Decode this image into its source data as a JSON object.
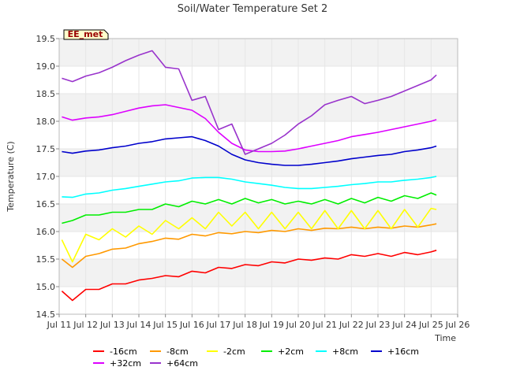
{
  "chart_data": {
    "type": "line",
    "title": "Soil/Water Temperature Set 2",
    "xlabel": "Time",
    "ylabel": "Temperature (C)",
    "station_label": "EE_met",
    "xlim": [
      11,
      26
    ],
    "ylim": [
      14.5,
      19.5
    ],
    "x_ticks": [
      11,
      12,
      13,
      14,
      15,
      16,
      17,
      18,
      19,
      20,
      21,
      22,
      23,
      24,
      25,
      26
    ],
    "x_tick_labels": [
      "Jul 11",
      "Jul 12",
      "Jul 13",
      "Jul 14",
      "Jul 15",
      "Jul 16",
      "Jul 17",
      "Jul 18",
      "Jul 19",
      "Jul 20",
      "Jul 21",
      "Jul 22",
      "Jul 23",
      "Jul 24",
      "Jul 25",
      "Jul 26"
    ],
    "y_ticks": [
      14.5,
      15.0,
      15.5,
      16.0,
      16.5,
      17.0,
      17.5,
      18.0,
      18.5,
      19.0,
      19.5
    ],
    "y_tick_labels": [
      "14.5",
      "15.0",
      "15.5",
      "16.0",
      "16.5",
      "17.0",
      "17.5",
      "18.0",
      "18.5",
      "19.0",
      "19.5"
    ],
    "grid": true,
    "legend_position": "bottom",
    "x": [
      11.1,
      11.5,
      12.0,
      12.5,
      13.0,
      13.5,
      14.0,
      14.5,
      15.0,
      15.5,
      16.0,
      16.5,
      17.0,
      17.5,
      18.0,
      18.5,
      19.0,
      19.5,
      20.0,
      20.5,
      21.0,
      21.5,
      22.0,
      22.5,
      23.0,
      23.5,
      24.0,
      24.5,
      25.0,
      25.2
    ],
    "series": [
      {
        "name": "-16cm",
        "color": "#ff0000",
        "values": [
          14.92,
          14.75,
          14.95,
          14.95,
          15.05,
          15.05,
          15.12,
          15.15,
          15.2,
          15.18,
          15.28,
          15.25,
          15.35,
          15.33,
          15.4,
          15.38,
          15.45,
          15.43,
          15.5,
          15.48,
          15.52,
          15.5,
          15.58,
          15.55,
          15.6,
          15.55,
          15.62,
          15.58,
          15.63,
          15.66
        ]
      },
      {
        "name": "-8cm",
        "color": "#ff9900",
        "values": [
          15.5,
          15.35,
          15.55,
          15.6,
          15.68,
          15.7,
          15.78,
          15.82,
          15.88,
          15.86,
          15.95,
          15.92,
          15.98,
          15.96,
          16.0,
          15.98,
          16.02,
          16.0,
          16.05,
          16.02,
          16.06,
          16.05,
          16.08,
          16.05,
          16.08,
          16.06,
          16.1,
          16.08,
          16.12,
          16.14
        ]
      },
      {
        "name": "-2cm",
        "color": "#ffff00",
        "values": [
          15.85,
          15.45,
          15.95,
          15.85,
          16.05,
          15.9,
          16.1,
          15.95,
          16.2,
          16.05,
          16.25,
          16.05,
          16.35,
          16.1,
          16.35,
          16.05,
          16.35,
          16.05,
          16.35,
          16.05,
          16.38,
          16.05,
          16.38,
          16.05,
          16.38,
          16.05,
          16.4,
          16.08,
          16.42,
          16.4
        ]
      },
      {
        "name": "+2cm",
        "color": "#00ee00",
        "values": [
          16.15,
          16.2,
          16.3,
          16.3,
          16.35,
          16.35,
          16.4,
          16.4,
          16.5,
          16.45,
          16.55,
          16.5,
          16.58,
          16.5,
          16.6,
          16.52,
          16.58,
          16.5,
          16.55,
          16.5,
          16.58,
          16.5,
          16.6,
          16.52,
          16.62,
          16.55,
          16.65,
          16.6,
          16.7,
          16.66
        ]
      },
      {
        "name": "+8cm",
        "color": "#00ffff",
        "values": [
          16.63,
          16.62,
          16.68,
          16.7,
          16.75,
          16.78,
          16.82,
          16.86,
          16.9,
          16.92,
          16.97,
          16.98,
          16.98,
          16.95,
          16.9,
          16.87,
          16.84,
          16.8,
          16.78,
          16.78,
          16.8,
          16.82,
          16.85,
          16.87,
          16.9,
          16.9,
          16.93,
          16.95,
          16.98,
          17.0
        ]
      },
      {
        "name": "+16cm",
        "color": "#0000cc",
        "values": [
          17.45,
          17.42,
          17.46,
          17.48,
          17.52,
          17.55,
          17.6,
          17.63,
          17.68,
          17.7,
          17.72,
          17.65,
          17.55,
          17.4,
          17.3,
          17.25,
          17.22,
          17.2,
          17.2,
          17.22,
          17.25,
          17.28,
          17.32,
          17.35,
          17.38,
          17.4,
          17.45,
          17.48,
          17.52,
          17.55
        ]
      },
      {
        "name": "+32cm",
        "color": "#dd00ff",
        "values": [
          18.08,
          18.02,
          18.06,
          18.08,
          18.12,
          18.18,
          18.24,
          18.28,
          18.3,
          18.25,
          18.2,
          18.05,
          17.8,
          17.6,
          17.48,
          17.45,
          17.45,
          17.46,
          17.5,
          17.55,
          17.6,
          17.65,
          17.72,
          17.76,
          17.8,
          17.85,
          17.9,
          17.95,
          18.0,
          18.03
        ]
      },
      {
        "name": "+64cm",
        "color": "#9933cc",
        "values": [
          18.78,
          18.72,
          18.82,
          18.88,
          18.98,
          19.1,
          19.2,
          19.28,
          18.98,
          18.95,
          18.38,
          18.45,
          17.85,
          17.95,
          17.4,
          17.5,
          17.6,
          17.75,
          17.95,
          18.1,
          18.3,
          18.38,
          18.45,
          18.32,
          18.38,
          18.45,
          18.55,
          18.65,
          18.75,
          18.84
        ]
      }
    ]
  }
}
